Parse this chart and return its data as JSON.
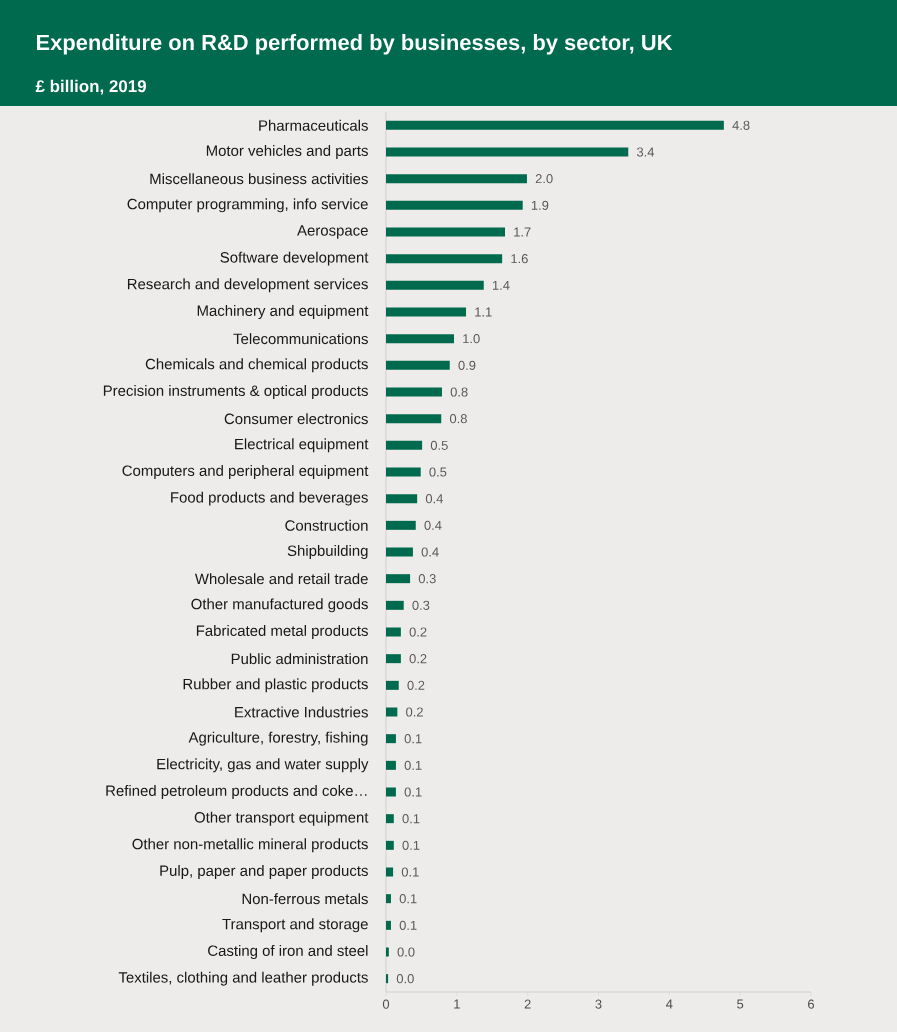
{
  "chart_data": {
    "type": "bar",
    "orientation": "horizontal",
    "title": "Expenditure on R&D performed by businesses, by sector, UK",
    "subtitle": "£ billion, 2019",
    "categories": [
      "Pharmaceuticals",
      "Motor vehicles and parts",
      "Miscellaneous business activities",
      "Computer programming, info service",
      "Aerospace",
      "Software development",
      "Research and development services",
      "Machinery and equipment",
      "Telecommunications",
      "Chemicals and chemical products",
      "Precision instruments & optical products",
      "Consumer electronics",
      "Electrical equipment",
      "Computers and peripheral equipment",
      "Food products and beverages",
      "Construction",
      "Shipbuilding",
      "Wholesale and retail trade",
      "Other manufactured goods",
      "Fabricated metal products",
      "Public administration",
      "Rubber and plastic products",
      "Extractive Industries",
      "Agriculture, forestry, fishing",
      "Electricity, gas and water supply",
      "Refined petroleum products and coke…",
      "Other transport equipment",
      "Other non-metallic mineral products",
      "Pulp, paper and paper products",
      "Non-ferrous metals",
      "Transport and storage",
      "Casting of iron and steel",
      "Textiles, clothing and leather products"
    ],
    "values": [
      4.77,
      3.42,
      1.99,
      1.93,
      1.68,
      1.64,
      1.38,
      1.13,
      0.96,
      0.9,
      0.79,
      0.78,
      0.51,
      0.49,
      0.44,
      0.42,
      0.38,
      0.34,
      0.25,
      0.21,
      0.21,
      0.18,
      0.16,
      0.14,
      0.14,
      0.14,
      0.11,
      0.11,
      0.1,
      0.07,
      0.07,
      0.04,
      0.03
    ],
    "value_labels": [
      "4.8",
      "3.4",
      "2.0",
      "1.9",
      "1.7",
      "1.6",
      "1.4",
      "1.1",
      "1.0",
      "0.9",
      "0.8",
      "0.8",
      "0.5",
      "0.5",
      "0.4",
      "0.4",
      "0.4",
      "0.3",
      "0.3",
      "0.2",
      "0.2",
      "0.2",
      "0.2",
      "0.1",
      "0.1",
      "0.1",
      "0.1",
      "0.1",
      "0.1",
      "0.1",
      "0.1",
      "0.0",
      "0.0"
    ],
    "color": "#006a4e",
    "xlim": [
      0,
      6
    ],
    "xticks": [
      0,
      1,
      2,
      3,
      4,
      5,
      6
    ],
    "grid": false
  }
}
